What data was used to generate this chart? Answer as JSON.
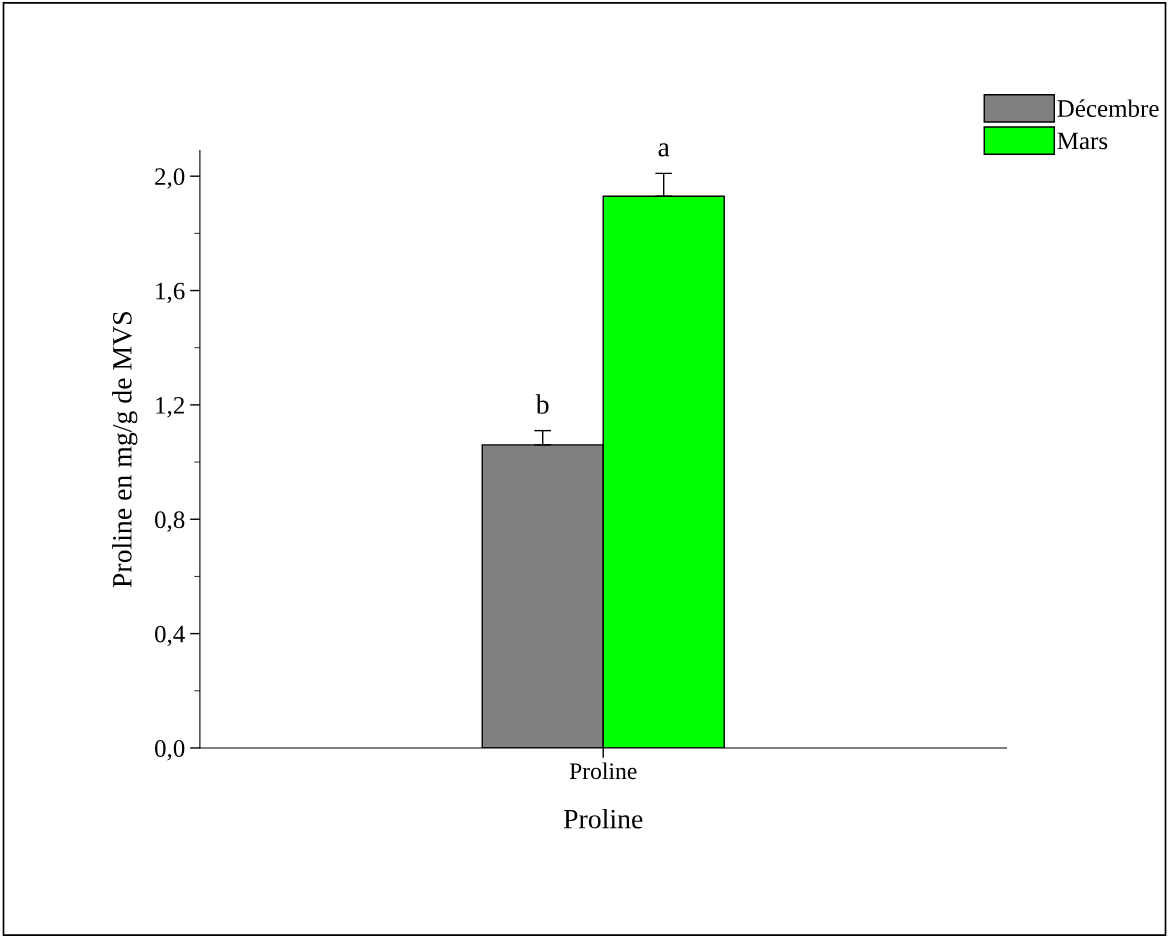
{
  "chart_data": {
    "type": "bar",
    "xlabel": "Proline",
    "ylabel": "Proline en mg/g de MVS",
    "categories": [
      "Proline"
    ],
    "series": [
      {
        "name": "Décembre",
        "color": "#808080",
        "values": [
          1.06
        ],
        "errors": [
          0.05
        ]
      },
      {
        "name": "Mars",
        "color": "#00ff00",
        "values": [
          1.93
        ],
        "errors": [
          0.08
        ]
      }
    ],
    "ylim": [
      0,
      2.09
    ],
    "yticks": [
      {
        "value": 0,
        "label": "0,0"
      },
      {
        "value": 0.4,
        "label": "0,4"
      },
      {
        "value": 0.8,
        "label": "0,8"
      },
      {
        "value": 1.2,
        "label": "1,2"
      },
      {
        "value": 1.6,
        "label": "1,6"
      },
      {
        "value": 2.0,
        "label": "2,0"
      }
    ],
    "annotations": [
      "b",
      "a"
    ],
    "grid": false,
    "legend": "top right"
  }
}
